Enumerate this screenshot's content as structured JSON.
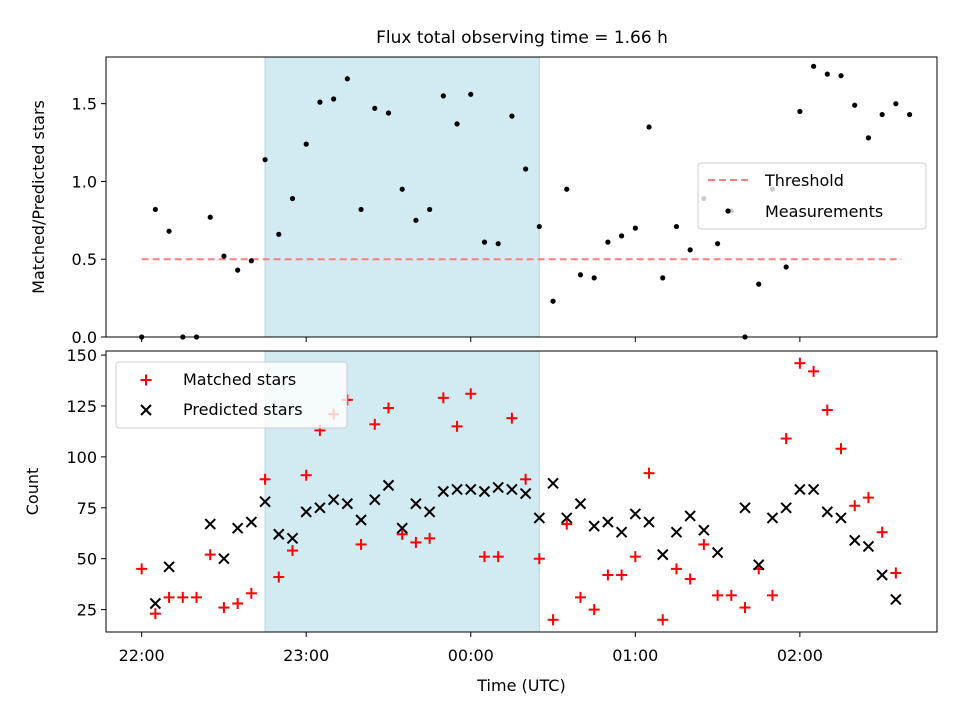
{
  "title": "Flux total observing time = 1.66 h",
  "colors": {
    "threshold": "#ff7f7f",
    "measurement": "#000000",
    "matched": "#ff0000",
    "predicted": "#000000",
    "shade": "#add8e6"
  },
  "chart_data": [
    {
      "type": "scatter",
      "ylabel": "Matched/Predicted stars",
      "ylim": [
        0,
        1.8
      ],
      "yticks": [
        "0.0",
        "0.5",
        "1.0",
        "1.5"
      ],
      "x_unit": "minutes after 22:00 UTC",
      "shaded_region": [
        45,
        145
      ],
      "legend": {
        "position": "center-right",
        "entries": [
          "Threshold",
          "Measurements"
        ]
      },
      "threshold": {
        "name": "Threshold",
        "value": 0.5,
        "x": [
          0,
          277
        ]
      },
      "series": [
        {
          "name": "Measurements",
          "points": [
            [
              0,
              0.0
            ],
            [
              5,
              0.82
            ],
            [
              10,
              0.68
            ],
            [
              15,
              0.0
            ],
            [
              20,
              0.0
            ],
            [
              25,
              0.77
            ],
            [
              30,
              0.52
            ],
            [
              35,
              0.43
            ],
            [
              40,
              0.49
            ],
            [
              45,
              1.14
            ],
            [
              50,
              0.66
            ],
            [
              55,
              0.89
            ],
            [
              60,
              1.24
            ],
            [
              65,
              1.51
            ],
            [
              70,
              1.53
            ],
            [
              75,
              1.66
            ],
            [
              80,
              0.82
            ],
            [
              85,
              1.47
            ],
            [
              90,
              1.44
            ],
            [
              95,
              0.95
            ],
            [
              100,
              0.75
            ],
            [
              105,
              0.82
            ],
            [
              110,
              1.55
            ],
            [
              115,
              1.37
            ],
            [
              120,
              1.56
            ],
            [
              125,
              0.61
            ],
            [
              130,
              0.6
            ],
            [
              135,
              1.42
            ],
            [
              140,
              1.08
            ],
            [
              145,
              0.71
            ],
            [
              150,
              0.23
            ],
            [
              155,
              0.95
            ],
            [
              160,
              0.4
            ],
            [
              165,
              0.38
            ],
            [
              170,
              0.61
            ],
            [
              175,
              0.65
            ],
            [
              180,
              0.7
            ],
            [
              185,
              1.35
            ],
            [
              190,
              0.38
            ],
            [
              195,
              0.71
            ],
            [
              200,
              0.56
            ],
            [
              205,
              0.89
            ],
            [
              210,
              0.6
            ],
            [
              215,
              0.81
            ],
            [
              220,
              0.0
            ],
            [
              225,
              0.34
            ],
            [
              230,
              0.95
            ],
            [
              235,
              0.45
            ],
            [
              240,
              1.45
            ],
            [
              245,
              1.74
            ],
            [
              250,
              1.69
            ],
            [
              255,
              1.68
            ],
            [
              260,
              1.49
            ],
            [
              265,
              1.28
            ],
            [
              270,
              1.43
            ],
            [
              275,
              1.5
            ],
            [
              280,
              1.43
            ]
          ]
        }
      ]
    },
    {
      "type": "scatter",
      "ylabel": "Count",
      "xlabel": "Time (UTC)",
      "ylim": [
        14,
        152
      ],
      "yticks": [
        "25",
        "50",
        "75",
        "100",
        "125",
        "150"
      ],
      "xlim": [
        -13,
        290
      ],
      "xticks": [
        {
          "x": 0,
          "label": "22:00"
        },
        {
          "x": 60,
          "label": "23:00"
        },
        {
          "x": 120,
          "label": "00:00"
        },
        {
          "x": 180,
          "label": "01:00"
        },
        {
          "x": 240,
          "label": "02:00"
        }
      ],
      "x_unit": "minutes after 22:00 UTC",
      "shaded_region": [
        45,
        145
      ],
      "legend": {
        "position": "top-left",
        "entries": [
          "Matched stars",
          "Predicted stars"
        ]
      },
      "series": [
        {
          "name": "Matched stars",
          "marker": "plus",
          "points": [
            [
              0,
              45
            ],
            [
              5,
              23
            ],
            [
              10,
              31
            ],
            [
              15,
              31
            ],
            [
              20,
              31
            ],
            [
              25,
              52
            ],
            [
              30,
              26
            ],
            [
              35,
              28
            ],
            [
              40,
              33
            ],
            [
              45,
              89
            ],
            [
              50,
              41
            ],
            [
              55,
              54
            ],
            [
              60,
              91
            ],
            [
              65,
              113
            ],
            [
              70,
              121
            ],
            [
              75,
              128
            ],
            [
              80,
              57
            ],
            [
              85,
              116
            ],
            [
              90,
              124
            ],
            [
              95,
              62
            ],
            [
              100,
              58
            ],
            [
              105,
              60
            ],
            [
              110,
              129
            ],
            [
              115,
              115
            ],
            [
              120,
              131
            ],
            [
              125,
              51
            ],
            [
              130,
              51
            ],
            [
              135,
              119
            ],
            [
              140,
              89
            ],
            [
              145,
              50
            ],
            [
              150,
              20
            ],
            [
              155,
              67
            ],
            [
              160,
              31
            ],
            [
              165,
              25
            ],
            [
              170,
              42
            ],
            [
              175,
              42
            ],
            [
              180,
              51
            ],
            [
              185,
              92
            ],
            [
              190,
              20
            ],
            [
              195,
              45
            ],
            [
              200,
              40
            ],
            [
              205,
              57
            ],
            [
              210,
              32
            ],
            [
              215,
              32
            ],
            [
              220,
              26
            ],
            [
              225,
              45
            ],
            [
              230,
              32
            ],
            [
              235,
              109
            ],
            [
              240,
              146
            ],
            [
              245,
              142
            ],
            [
              250,
              123
            ],
            [
              255,
              104
            ],
            [
              260,
              76
            ],
            [
              265,
              80
            ],
            [
              270,
              63
            ],
            [
              275,
              43
            ]
          ]
        },
        {
          "name": "Predicted stars",
          "marker": "x",
          "points": [
            [
              5,
              28
            ],
            [
              10,
              46
            ],
            [
              25,
              67
            ],
            [
              30,
              50
            ],
            [
              35,
              65
            ],
            [
              40,
              68
            ],
            [
              45,
              78
            ],
            [
              50,
              62
            ],
            [
              55,
              60
            ],
            [
              60,
              73
            ],
            [
              65,
              75
            ],
            [
              70,
              79
            ],
            [
              75,
              77
            ],
            [
              80,
              69
            ],
            [
              85,
              79
            ],
            [
              90,
              86
            ],
            [
              95,
              65
            ],
            [
              100,
              77
            ],
            [
              105,
              73
            ],
            [
              110,
              83
            ],
            [
              115,
              84
            ],
            [
              120,
              84
            ],
            [
              125,
              83
            ],
            [
              130,
              85
            ],
            [
              135,
              84
            ],
            [
              140,
              82
            ],
            [
              145,
              70
            ],
            [
              150,
              87
            ],
            [
              155,
              70
            ],
            [
              160,
              77
            ],
            [
              165,
              66
            ],
            [
              170,
              68
            ],
            [
              175,
              63
            ],
            [
              180,
              72
            ],
            [
              185,
              68
            ],
            [
              190,
              52
            ],
            [
              195,
              63
            ],
            [
              200,
              71
            ],
            [
              205,
              64
            ],
            [
              210,
              53
            ],
            [
              220,
              75
            ],
            [
              225,
              47
            ],
            [
              230,
              70
            ],
            [
              235,
              75
            ],
            [
              240,
              84
            ],
            [
              245,
              84
            ],
            [
              250,
              73
            ],
            [
              255,
              70
            ],
            [
              260,
              59
            ],
            [
              265,
              56
            ],
            [
              270,
              42
            ],
            [
              275,
              30
            ]
          ]
        }
      ]
    }
  ]
}
